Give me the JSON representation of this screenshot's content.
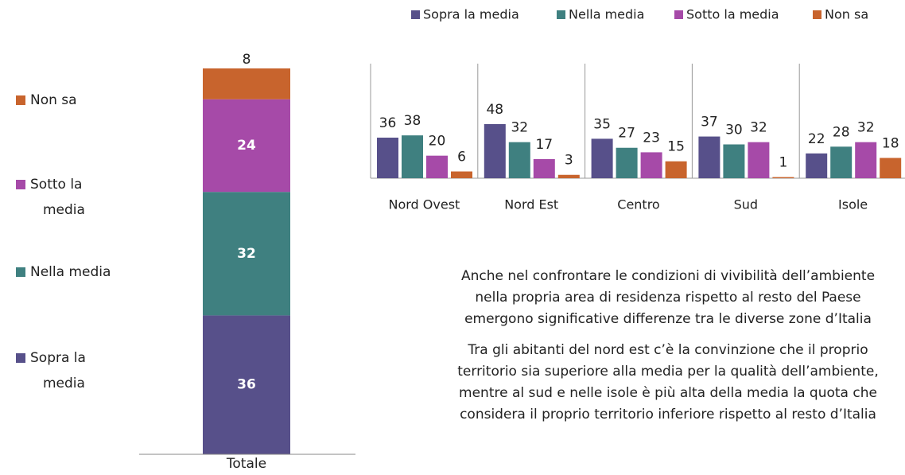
{
  "chart_data": [
    {
      "type": "bar",
      "stacked": true,
      "categories": [
        "Totale"
      ],
      "series": [
        {
          "name": "Sopra la media",
          "color": "#57508a",
          "values": [
            36
          ]
        },
        {
          "name": "Nella media",
          "color": "#3f8080",
          "values": [
            32
          ]
        },
        {
          "name": "Sotto la media",
          "color": "#a64aa8",
          "values": [
            24
          ]
        },
        {
          "name": "Non sa",
          "color": "#c8642d",
          "values": [
            8
          ]
        }
      ]
    },
    {
      "type": "bar",
      "stacked": false,
      "categories": [
        "Nord Ovest",
        "Nord Est",
        "Centro",
        "Sud",
        "Isole"
      ],
      "series": [
        {
          "name": "Sopra la media",
          "color": "#57508a",
          "values": [
            36,
            48,
            35,
            37,
            22
          ]
        },
        {
          "name": "Nella media",
          "color": "#3f8080",
          "values": [
            38,
            32,
            27,
            30,
            28
          ]
        },
        {
          "name": "Sotto la media",
          "color": "#a64aa8",
          "values": [
            20,
            17,
            23,
            32,
            32
          ]
        },
        {
          "name": "Non sa",
          "color": "#c8642d",
          "values": [
            6,
            3,
            15,
            1,
            18
          ]
        }
      ]
    }
  ],
  "paragraphs": [
    [
      "Anche nel confrontare le condizioni di vivibilità dell’ambiente",
      "nella propria area di residenza rispetto al resto del Paese",
      "emergono significative differenze tra le diverse zone d’Italia"
    ],
    [
      "Tra gli abitanti del nord est c’è la convinzione che il proprio",
      "territorio sia superiore alla media per la qualità dell’ambiente,",
      "mentre  al sud  e nelle isole è più alta della media la quota che",
      "considera  il proprio territorio inferiore rispetto al resto d’Italia"
    ]
  ]
}
